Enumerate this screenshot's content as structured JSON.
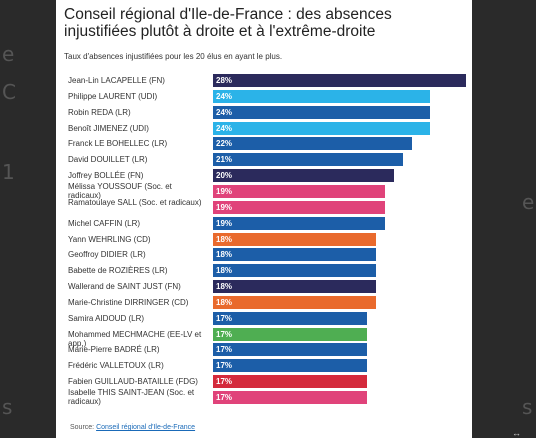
{
  "chart_data": {
    "type": "bar",
    "orientation": "horizontal",
    "title": "Conseil régional d'Ile-de-France : des absences injustifiées plutôt à droite et à l'extrême-droite",
    "subtitle": "Taux d'absences injustifiées pour les 20 élus en ayant le plus.",
    "xlim": [
      0,
      28
    ],
    "categories": [
      "Jean-Lin LACAPELLE (FN)",
      "Philippe LAURENT (UDI)",
      "Robin REDA (LR)",
      "Benoît JIMENEZ (UDI)",
      "Franck LE BOHELLEC (LR)",
      "David DOUILLET (LR)",
      "Joffrey BOLLÉE (FN)",
      "Mélissa YOUSSOUF (Soc. et radicaux)",
      "Ramatoulaye SALL (Soc. et radicaux)",
      "Michel CAFFIN (LR)",
      "Yann WEHRLING (CD)",
      "Geoffroy DIDIER (LR)",
      "Babette de ROZIÈRES (LR)",
      "Wallerand de SAINT JUST (FN)",
      "Marie-Christine DIRRINGER (CD)",
      "Samira AIDOUD (LR)",
      "Mohammed MECHMACHE (EE-LV et app.)",
      "Marie-Pierre BADRÉ (LR)",
      "Frédéric VALLETOUX (LR)",
      "Fabien GUILLAUD-BATAILLE (FDG)",
      "Isabelle THIS SAINT-JEAN (Soc. et radicaux)"
    ],
    "values": [
      28,
      24,
      24,
      24,
      22,
      21,
      20,
      19,
      19,
      19,
      18,
      18,
      18,
      18,
      18,
      17,
      17,
      17,
      17,
      17,
      17
    ],
    "display_values": [
      28,
      24,
      24,
      24,
      22,
      21,
      20,
      19,
      19,
      19,
      18,
      18,
      18,
      18,
      18,
      17,
      17,
      17,
      17,
      17,
      17
    ],
    "value_suffix": "%",
    "colors": [
      "#2b2a5c",
      "#2bb3e8",
      "#1c5ea8",
      "#2bb3e8",
      "#1c5ea8",
      "#1c5ea8",
      "#2b2a5c",
      "#e0437a",
      "#e0437a",
      "#1c5ea8",
      "#e96a2d",
      "#1c5ea8",
      "#1c5ea8",
      "#2b2a5c",
      "#e96a2d",
      "#1c5ea8",
      "#4fae52",
      "#1c5ea8",
      "#1c5ea8",
      "#d42a3c",
      "#e0437a"
    ]
  },
  "source": {
    "prefix": "Source:",
    "link": "Conseil régional d'Ile-de-France"
  },
  "background": {
    "left_glyphs": [
      "e",
      "C",
      "1",
      "s"
    ],
    "right_glyphs": [
      "e",
      "s"
    ]
  }
}
